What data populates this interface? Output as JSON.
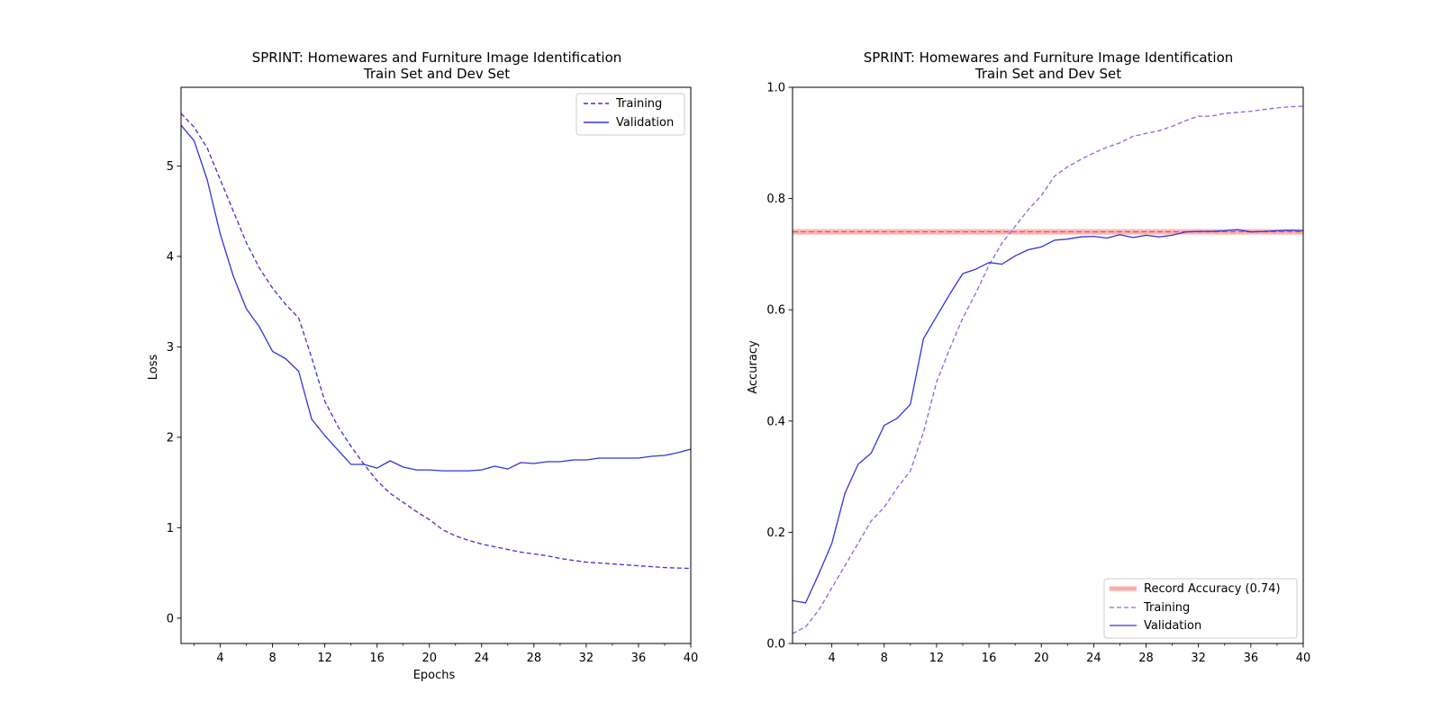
{
  "chart_data": [
    {
      "type": "line",
      "title": "SPRINT: Homewares and Furniture Image Identification",
      "subtitle": "Train Set and Dev Set",
      "xlabel": "Epochs",
      "ylabel": "Loss",
      "xlim": [
        1,
        40
      ],
      "ylim": [
        -0.28,
        5.87
      ],
      "x_ticks": [
        4,
        8,
        12,
        16,
        20,
        24,
        28,
        32,
        36,
        40
      ],
      "y_ticks": [
        0,
        1,
        2,
        3,
        4,
        5
      ],
      "grid": false,
      "legend_position": "top-right",
      "x": [
        1,
        2,
        3,
        4,
        5,
        6,
        7,
        8,
        9,
        10,
        11,
        12,
        13,
        14,
        15,
        16,
        17,
        18,
        19,
        20,
        21,
        22,
        23,
        24,
        25,
        26,
        27,
        28,
        29,
        30,
        31,
        32,
        33,
        34,
        35,
        36,
        37,
        38,
        39,
        40
      ],
      "series": [
        {
          "name": "Training",
          "style": "dashed",
          "color": "#3333dd",
          "values": [
            5.58,
            5.43,
            5.2,
            4.85,
            4.5,
            4.15,
            3.87,
            3.65,
            3.47,
            3.32,
            2.88,
            2.4,
            2.12,
            1.9,
            1.7,
            1.52,
            1.38,
            1.28,
            1.18,
            1.09,
            0.98,
            0.91,
            0.86,
            0.82,
            0.79,
            0.76,
            0.73,
            0.71,
            0.69,
            0.66,
            0.64,
            0.62,
            0.61,
            0.6,
            0.59,
            0.58,
            0.57,
            0.56,
            0.555,
            0.55
          ]
        },
        {
          "name": "Validation",
          "style": "solid",
          "color": "#3333dd",
          "values": [
            5.45,
            5.28,
            4.85,
            4.25,
            3.78,
            3.42,
            3.22,
            2.95,
            2.87,
            2.73,
            2.2,
            2.02,
            1.86,
            1.7,
            1.7,
            1.66,
            1.74,
            1.67,
            1.64,
            1.64,
            1.63,
            1.63,
            1.63,
            1.64,
            1.68,
            1.65,
            1.72,
            1.71,
            1.73,
            1.73,
            1.75,
            1.75,
            1.77,
            1.77,
            1.77,
            1.77,
            1.79,
            1.8,
            1.83,
            1.87
          ]
        }
      ]
    },
    {
      "type": "line",
      "title": "SPRINT: Homewares and Furniture Image Identification",
      "subtitle": "Train Set and Dev Set",
      "xlabel": "",
      "ylabel": "Accuracy",
      "xlim": [
        1,
        40
      ],
      "ylim": [
        0,
        1
      ],
      "x_ticks": [
        4,
        8,
        12,
        16,
        20,
        24,
        28,
        32,
        36,
        40
      ],
      "y_ticks": [
        0.0,
        0.2,
        0.4,
        0.6,
        0.8,
        1.0
      ],
      "grid": false,
      "legend_position": "bottom-right",
      "x": [
        1,
        2,
        3,
        4,
        5,
        6,
        7,
        8,
        9,
        10,
        11,
        12,
        13,
        14,
        15,
        16,
        17,
        18,
        19,
        20,
        21,
        22,
        23,
        24,
        25,
        26,
        27,
        28,
        29,
        30,
        31,
        32,
        33,
        34,
        35,
        36,
        37,
        38,
        39,
        40
      ],
      "reference_line": {
        "name": "Record Accuracy (0.74)",
        "value": 0.74,
        "color": "#ff9999",
        "inner_color": "#c85050"
      },
      "series": [
        {
          "name": "Training",
          "style": "dashed",
          "color": "#7070ee",
          "values": [
            0.018,
            0.03,
            0.06,
            0.1,
            0.14,
            0.18,
            0.22,
            0.245,
            0.28,
            0.31,
            0.38,
            0.47,
            0.53,
            0.585,
            0.63,
            0.68,
            0.72,
            0.75,
            0.78,
            0.805,
            0.84,
            0.857,
            0.87,
            0.882,
            0.892,
            0.9,
            0.912,
            0.917,
            0.922,
            0.93,
            0.94,
            0.948,
            0.948,
            0.953,
            0.955,
            0.957,
            0.96,
            0.963,
            0.965,
            0.966
          ]
        },
        {
          "name": "Validation",
          "style": "solid",
          "color": "#3333dd",
          "values": [
            0.077,
            0.073,
            0.125,
            0.18,
            0.27,
            0.322,
            0.342,
            0.392,
            0.405,
            0.43,
            0.548,
            0.588,
            0.628,
            0.665,
            0.673,
            0.685,
            0.682,
            0.697,
            0.708,
            0.713,
            0.725,
            0.727,
            0.731,
            0.732,
            0.729,
            0.735,
            0.73,
            0.734,
            0.731,
            0.734,
            0.74,
            0.741,
            0.741,
            0.742,
            0.744,
            0.74,
            0.741,
            0.742,
            0.743,
            0.742
          ]
        }
      ]
    }
  ]
}
